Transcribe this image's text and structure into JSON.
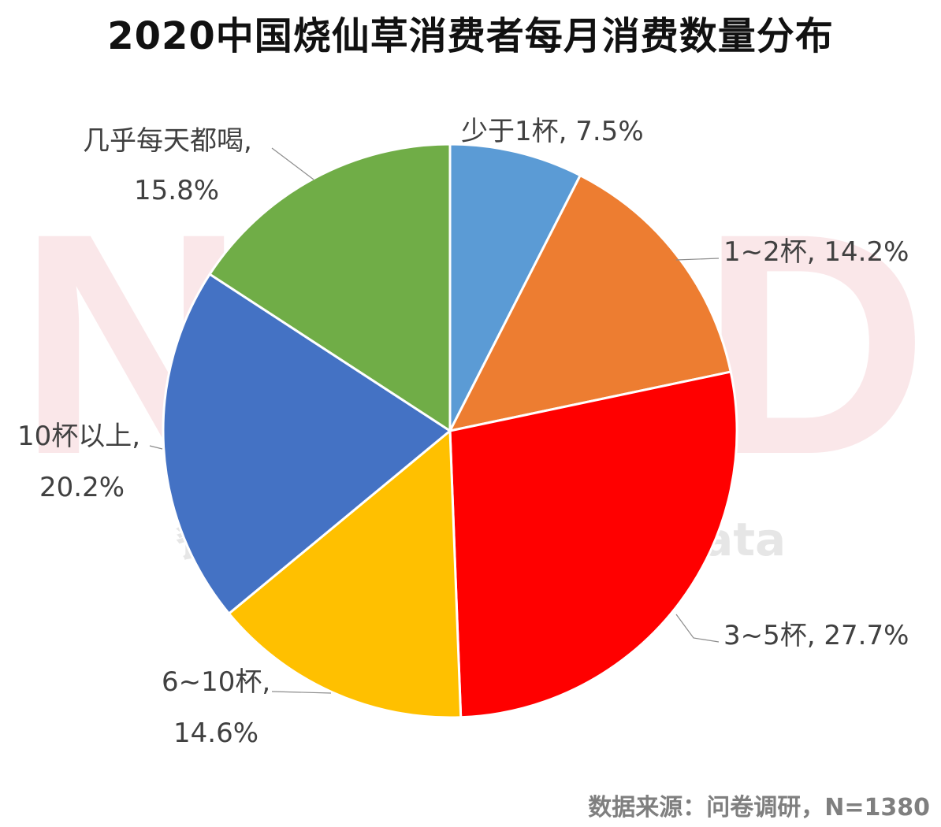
{
  "title": "2020中国烧仙草消费者每月消费数量分布",
  "source": "数据来源：问卷调研，N=1380",
  "watermark": {
    "logo_text": "NCBD",
    "text": "餐宝典 Catering Big Data"
  },
  "chart_data": {
    "type": "pie",
    "title": "2020中国烧仙草消费者每月消费数量分布",
    "start_angle_deg": 0,
    "direction": "clockwise",
    "slices": [
      {
        "label": "少于1杯",
        "value": 7.5,
        "display": "7.5%",
        "color": "#5B9BD5"
      },
      {
        "label": "1~2杯",
        "value": 14.2,
        "display": "14.2%",
        "color": "#ED7D31"
      },
      {
        "label": "3~5杯",
        "value": 27.7,
        "display": "27.7%",
        "color": "#FF0000"
      },
      {
        "label": "6~10杯",
        "value": 14.6,
        "display": "14.6%",
        "color": "#FFC000"
      },
      {
        "label": "10杯以上",
        "value": 20.2,
        "display": "20.2%",
        "color": "#4472C4"
      },
      {
        "label": "几乎每天都喝",
        "value": 15.8,
        "display": "15.8%",
        "color": "#70AD47"
      }
    ]
  }
}
